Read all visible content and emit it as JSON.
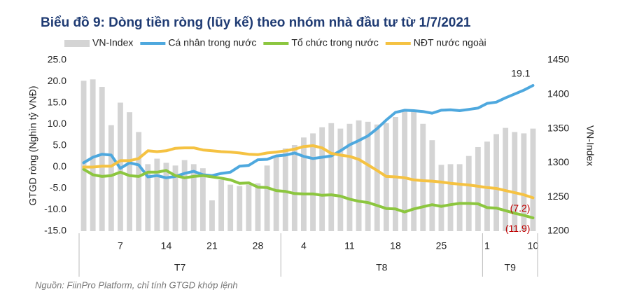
{
  "chart_data": {
    "type": "combo",
    "title": "Biểu đồ 9: Dòng tiền ròng (lũy kế) theo nhóm nhà đầu tư từ 1/7/2021",
    "source": "Nguồn: FiinPro Platform, chỉ tính GTGD khớp lệnh",
    "y_label": "GTGD ròng (Nghìn tỷ VNĐ)",
    "y2_label": "VN-Index",
    "categories": [
      null,
      null,
      null,
      null,
      "7",
      null,
      null,
      null,
      null,
      "14",
      null,
      null,
      null,
      null,
      "21",
      null,
      null,
      null,
      null,
      "28",
      null,
      null,
      null,
      null,
      "4",
      null,
      null,
      null,
      null,
      "11",
      null,
      null,
      null,
      null,
      "18",
      null,
      null,
      null,
      null,
      "25",
      null,
      null,
      null,
      null,
      "1",
      null,
      null,
      null,
      null,
      "10"
    ],
    "groups": [
      {
        "label": "T7",
        "count": 22
      },
      {
        "label": "T8",
        "count": 22
      },
      {
        "label": "T9",
        "count": 6
      }
    ],
    "ylim": [
      -15,
      25
    ],
    "yticks": [
      {
        "value": -15,
        "label": "-15.0"
      },
      {
        "value": -10,
        "label": "-10.0"
      },
      {
        "value": -5,
        "label": "-5.0"
      },
      {
        "value": 0,
        "label": "0.0"
      },
      {
        "value": 5,
        "label": "5.0"
      },
      {
        "value": 10,
        "label": "10.0"
      },
      {
        "value": 15,
        "label": "15.0"
      },
      {
        "value": 20,
        "label": "20.0"
      },
      {
        "value": 25,
        "label": "25.0"
      }
    ],
    "y2lim": [
      1200,
      1450
    ],
    "y2ticks": [
      1200,
      1250,
      1300,
      1350,
      1400,
      1450
    ],
    "grid": false,
    "legend": "top",
    "series": [
      {
        "name": "VN-Index",
        "type": "bar",
        "axis": "y2",
        "color": "#d4d4d4",
        "values": [
          1420,
          1422,
          1411,
          1355,
          1388,
          1374,
          1345,
          1298,
          1306,
          1300,
          1296,
          1304,
          1298,
          1292,
          1245,
          1275,
          1268,
          1266,
          1268,
          1270,
          1296,
          1310,
          1321,
          1326,
          1337,
          1343,
          1352,
          1358,
          1350,
          1357,
          1362,
          1360,
          1356,
          1358,
          1367,
          1377,
          1375,
          1357,
          1333,
          1297,
          1298,
          1298,
          1310,
          1323,
          1331,
          1342,
          1351,
          1345,
          1343,
          1350
        ]
      },
      {
        "name": "Cá nhân trong nước",
        "type": "line",
        "color": "#4ea8de",
        "values": [
          1.0,
          2.3,
          3.0,
          2.8,
          -0.3,
          1.0,
          0.5,
          -2.3,
          -2.0,
          -2.5,
          -2.2,
          -1.5,
          -1.0,
          -1.8,
          -2.0,
          -1.5,
          -1.2,
          0.2,
          0.4,
          1.7,
          1.8,
          2.6,
          2.8,
          3.3,
          2.5,
          2.0,
          2.3,
          2.6,
          3.8,
          5.2,
          6.2,
          7.3,
          9.0,
          11.0,
          12.8,
          13.3,
          13.2,
          13.0,
          12.6,
          13.3,
          13.4,
          13.2,
          13.5,
          13.8,
          14.9,
          15.2,
          16.2,
          17.1,
          18.0,
          19.1
        ],
        "end_label": "19.1",
        "label_color": "#222222"
      },
      {
        "name": "Tổ chức trong nước",
        "type": "line",
        "color": "#8cc63f",
        "values": [
          -0.5,
          -1.8,
          -2.2,
          -2.0,
          -1.2,
          -2.0,
          -2.2,
          -1.2,
          -1.2,
          -0.8,
          -2.0,
          -2.5,
          -2.2,
          -2.0,
          -2.3,
          -2.6,
          -3.0,
          -3.8,
          -3.7,
          -4.7,
          -4.8,
          -5.5,
          -5.7,
          -6.2,
          -6.3,
          -6.3,
          -6.6,
          -6.5,
          -6.8,
          -7.5,
          -8.0,
          -8.3,
          -9.0,
          -9.7,
          -9.8,
          -10.5,
          -9.8,
          -9.3,
          -8.8,
          -9.2,
          -8.8,
          -8.5,
          -8.5,
          -8.6,
          -9.5,
          -9.6,
          -10.2,
          -10.8,
          -11.3,
          -11.9
        ],
        "end_label": "(11.9)",
        "label_color": "#c00000"
      },
      {
        "name": "NĐT nước ngoài",
        "type": "line",
        "color": "#f5c242",
        "values": [
          0,
          0,
          0.2,
          0.2,
          1.5,
          1.5,
          2.0,
          3.8,
          3.6,
          3.8,
          4.4,
          4.5,
          4.5,
          4.0,
          3.8,
          3.6,
          3.5,
          3.3,
          3.0,
          2.9,
          3.3,
          3.5,
          3.8,
          4.2,
          4.8,
          5.0,
          4.5,
          3.2,
          2.8,
          2.5,
          1.8,
          0.5,
          -0.8,
          -2.2,
          -2.3,
          -2.5,
          -3.0,
          -3.2,
          -3.3,
          -3.5,
          -3.8,
          -4.0,
          -4.2,
          -4.5,
          -4.8,
          -5.0,
          -5.5,
          -6.0,
          -6.5,
          -7.2
        ],
        "end_label": "(7.2)",
        "label_color": "#c00000"
      }
    ]
  }
}
